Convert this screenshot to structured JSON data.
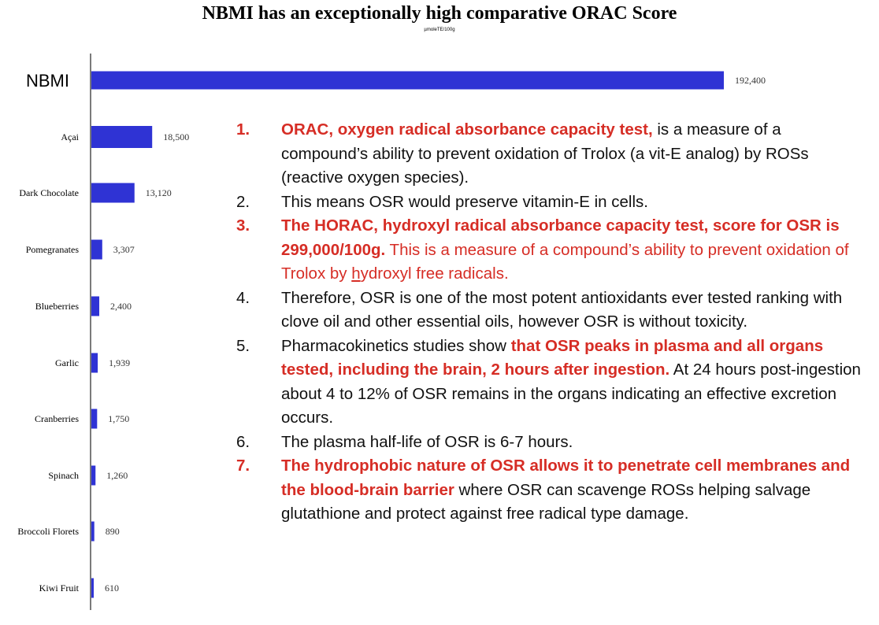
{
  "chart_data": {
    "type": "bar",
    "orientation": "horizontal",
    "title": "NBMI has an exceptionally high comparative ORAC Score",
    "subtitle": "µmoleTE/100g",
    "categories": [
      "NBMI",
      "Açai",
      "Dark Chocolate",
      "Pomegranates",
      "Blueberries",
      "Garlic",
      "Cranberries",
      "Spinach",
      "Broccoli Florets",
      "Kiwi Fruit"
    ],
    "values": [
      192400,
      18500,
      13120,
      3307,
      2400,
      1939,
      1750,
      1260,
      890,
      610
    ],
    "value_labels": [
      "192,400",
      "18,500",
      "13,120",
      "3,307",
      "2,400",
      "1,939",
      "1,750",
      "1,260",
      "890",
      "610"
    ],
    "xlim": [
      0,
      192400
    ],
    "bar_color": "#2f33d4",
    "grid": false,
    "legend": "none"
  },
  "notes": [
    {
      "num": "1.",
      "style": "red-bold",
      "parts": [
        {
          "t": "ORAC, oxygen radical absorbance capacity test,",
          "s": "red-bold"
        },
        {
          "t": " is a measure of a compound’s ability to prevent oxidation of Trolox  (a vit-E analog) by ROSs (reactive oxygen species).",
          "s": ""
        }
      ]
    },
    {
      "num": "2.",
      "style": "",
      "parts": [
        {
          "t": "This means OSR would preserve vitamin-E in cells.",
          "s": ""
        }
      ]
    },
    {
      "num": "3.",
      "style": "red-bold",
      "parts": [
        {
          "t": "The HORAC, hydroxyl radical absorbance capacity test, score for OSR is 299,000/100g.",
          "s": "red-bold"
        },
        {
          "t": "  This is a measure of a compound’s ability to prevent oxidation of Trolox by ",
          "s": "red"
        },
        {
          "t": "h",
          "s": "red under"
        },
        {
          "t": "ydroxyl free radicals.",
          "s": "red"
        }
      ]
    },
    {
      "num": "4.",
      "style": "",
      "parts": [
        {
          "t": "Therefore, OSR is one of the most potent antioxidants ever tested ranking with clove oil and other essential oils, however OSR is without toxicity.",
          "s": ""
        }
      ]
    },
    {
      "num": "5.",
      "style": "",
      "parts": [
        {
          "t": "Pharmacokinetics studies show ",
          "s": ""
        },
        {
          "t": "that OSR peaks in plasma and all organs tested, including the brain, 2 hours after ingestion.",
          "s": "red-bold"
        },
        {
          "t": " At 24 hours post-ingestion about 4 to 12% of OSR remains in the organs indicating an effective excretion occurs.",
          "s": ""
        }
      ]
    },
    {
      "num": "6.",
      "style": "",
      "parts": [
        {
          "t": "The plasma half-life of OSR is 6-7 hours.",
          "s": ""
        }
      ]
    },
    {
      "num": "7.",
      "style": "red-bold",
      "parts": [
        {
          "t": "The hydrophobic nature of OSR allows it to penetrate cell membranes and the blood-brain barrier",
          "s": "red-bold"
        },
        {
          "t": " where OSR can scavenge ROSs helping salvage glutathione and protect against free radical type damage.",
          "s": ""
        }
      ]
    }
  ]
}
